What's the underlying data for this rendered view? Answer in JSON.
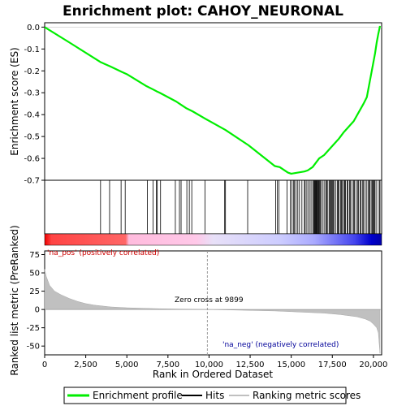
{
  "chart_data": {
    "type": "line",
    "title": "Enrichment plot: CAHOY_NEURONAL",
    "xlabel": "Rank in Ordered Dataset",
    "ylabel_es": "Enrichment score (ES)",
    "ylabel_rank": "Ranked list metric (PreRanked)",
    "x_ticks": [
      "0",
      "2,500",
      "5,000",
      "7,500",
      "10,000",
      "12,500",
      "15,000",
      "17,500",
      "20,000"
    ],
    "es_ticks": [
      "0.0",
      "-0.1",
      "-0.2",
      "-0.3",
      "-0.4",
      "-0.5",
      "-0.6",
      "-0.7"
    ],
    "rank_ticks": [
      "75",
      "50",
      "25",
      "0",
      "-25",
      "-50"
    ],
    "xlim": [
      0,
      20500
    ],
    "es_ylim": [
      -0.7,
      0.02
    ],
    "rank_ylim": [
      -62,
      80
    ],
    "zero_cross_label": "Zero cross at 9899",
    "zero_cross_x": 9899,
    "pos_label": "'na_pos' (positively correlated)",
    "neg_label": "'na_neg' (negatively correlated)",
    "series": [
      {
        "name": "Enrichment profile",
        "color": "#00ee00",
        "x": [
          0,
          1500,
          3300,
          3400,
          4000,
          4700,
          5000,
          6200,
          6600,
          6800,
          7000,
          8000,
          8300,
          8600,
          9000,
          9800,
          11000,
          12400,
          14000,
          14300,
          14800,
          15000,
          15400,
          15800,
          16000,
          16300,
          16500,
          16700,
          17000,
          17300,
          17600,
          17900,
          18200,
          18500,
          18800,
          19100,
          19400,
          19600,
          19700,
          19800,
          19900,
          20000,
          20100,
          20200,
          20300,
          20400
        ],
        "values": [
          0.0,
          -0.07,
          -0.155,
          -0.16,
          -0.18,
          -0.205,
          -0.215,
          -0.27,
          -0.285,
          -0.293,
          -0.3,
          -0.34,
          -0.355,
          -0.37,
          -0.385,
          -0.42,
          -0.47,
          -0.54,
          -0.635,
          -0.64,
          -0.665,
          -0.67,
          -0.665,
          -0.66,
          -0.655,
          -0.64,
          -0.62,
          -0.6,
          -0.585,
          -0.56,
          -0.535,
          -0.51,
          -0.48,
          -0.455,
          -0.43,
          -0.39,
          -0.35,
          -0.32,
          -0.28,
          -0.24,
          -0.2,
          -0.16,
          -0.12,
          -0.07,
          -0.03,
          0.005
        ]
      },
      {
        "name": "Hits",
        "color": "#000000",
        "positions": [
          3400,
          3950,
          4650,
          4900,
          6250,
          6600,
          6800,
          6850,
          7050,
          7950,
          8200,
          8300,
          8650,
          8800,
          8950,
          9750,
          10950,
          11000,
          12350,
          14050,
          14150,
          14250,
          14750,
          14950,
          15050,
          15150,
          15200,
          15300,
          15400,
          15500,
          15650,
          15800,
          15850,
          15950,
          16050,
          16150,
          16250,
          16350,
          16380,
          16420,
          16460,
          16500,
          16540,
          16580,
          16620,
          16660,
          16700,
          16750,
          16800,
          16900,
          17000,
          17100,
          17150,
          17200,
          17300,
          17350,
          17400,
          17450,
          17500,
          17550,
          17600,
          17700,
          17800,
          17850,
          17900,
          18000,
          18050,
          18100,
          18200,
          18250,
          18300,
          18400,
          18450,
          18550,
          18600,
          18700,
          18800,
          18850,
          18950,
          19050,
          19100,
          19200,
          19250,
          19350,
          19400,
          19500,
          19600,
          19700,
          19750,
          19800,
          19900,
          19950,
          20000,
          20050,
          20100,
          20200,
          20350,
          20400
        ]
      },
      {
        "name": "Ranking metric scores",
        "color": "#c0c0c0",
        "x": [
          0,
          100,
          300,
          600,
          1000,
          1500,
          2000,
          2500,
          3000,
          4000,
          5000,
          6000,
          7000,
          8000,
          9000,
          9899,
          11000,
          12000,
          13000,
          14000,
          15000,
          16000,
          17000,
          18000,
          18500,
          19000,
          19500,
          19800,
          20000,
          20200,
          20300,
          20400
        ],
        "values": [
          55,
          45,
          33,
          25,
          20,
          15,
          11,
          8,
          6,
          3.5,
          2.3,
          1.6,
          1.0,
          0.6,
          0.3,
          0,
          -0.5,
          -1.0,
          -1.5,
          -2,
          -3,
          -4,
          -5,
          -7,
          -8.5,
          -10,
          -13,
          -16,
          -20,
          -25,
          -32,
          -60
        ]
      }
    ],
    "legend": [
      {
        "label": "Enrichment profile",
        "color": "#00ee00"
      },
      {
        "label": "Hits",
        "color": "#000000"
      },
      {
        "label": "Ranking metric scores",
        "color": "#c0c0c0"
      }
    ]
  }
}
